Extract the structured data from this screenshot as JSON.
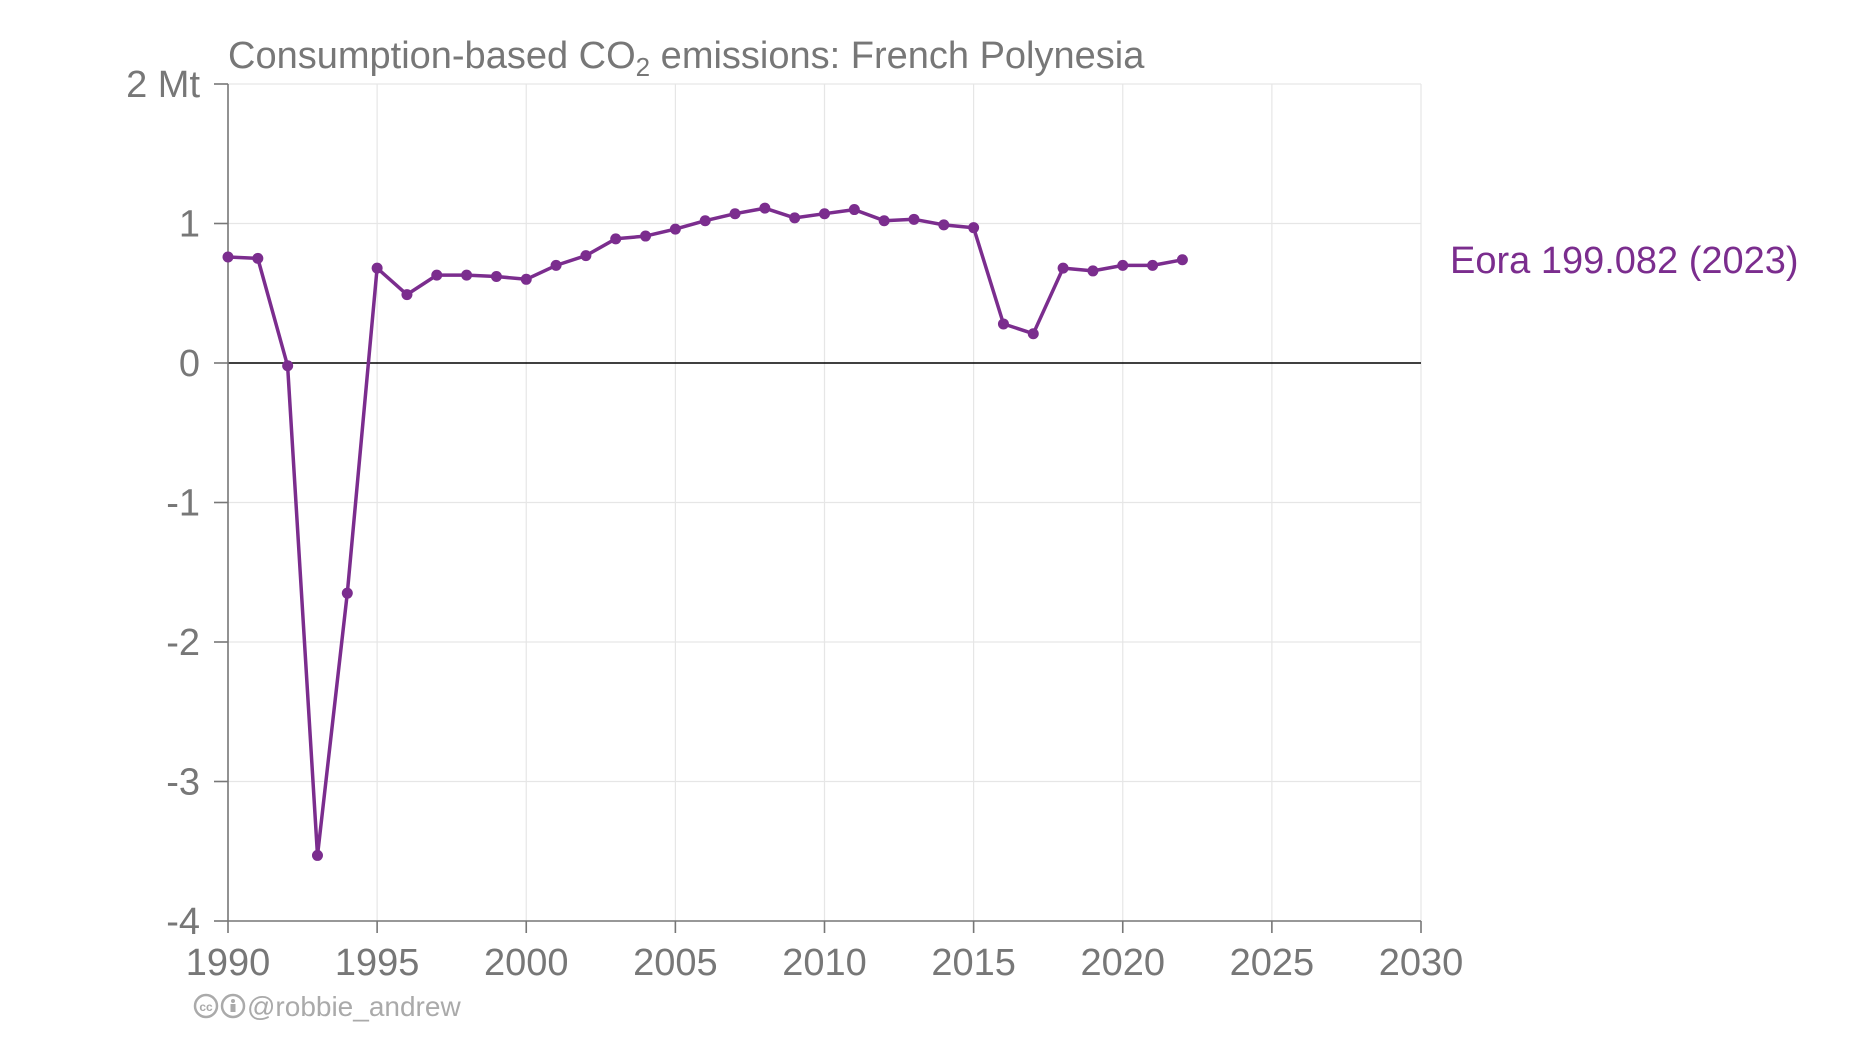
{
  "chart_data": {
    "type": "line",
    "title_prefix": "Consumption-based CO",
    "title_subscript": "2",
    "title_suffix": " emissions: French Polynesia",
    "ylabel": "",
    "xlabel": "",
    "y_unit": "Mt",
    "xlim": [
      1990,
      2030
    ],
    "ylim": [
      -4,
      2
    ],
    "x_ticks": [
      1990,
      1995,
      2000,
      2005,
      2010,
      2015,
      2020,
      2025,
      2030
    ],
    "y_ticks": [
      2,
      1,
      0,
      -1,
      -2,
      -3,
      -4
    ],
    "y_tick_labels": [
      "2 Mt",
      "1",
      "0",
      "-1",
      "-2",
      "-3",
      "-4"
    ],
    "grid": true,
    "series": [
      {
        "name": "Eora 199.082 (2023)",
        "color": "#7b2d8e",
        "x": [
          1990,
          1991,
          1992,
          1993,
          1994,
          1995,
          1996,
          1997,
          1998,
          1999,
          2000,
          2001,
          2002,
          2003,
          2004,
          2005,
          2006,
          2007,
          2008,
          2009,
          2010,
          2011,
          2012,
          2013,
          2014,
          2015,
          2016,
          2017,
          2018,
          2019,
          2020,
          2021,
          2022
        ],
        "y": [
          0.76,
          0.75,
          -0.02,
          -3.53,
          -1.65,
          0.68,
          0.49,
          0.63,
          0.63,
          0.62,
          0.6,
          0.7,
          0.77,
          0.89,
          0.91,
          0.96,
          1.02,
          1.07,
          1.11,
          1.04,
          1.07,
          1.1,
          1.02,
          1.03,
          0.99,
          0.97,
          0.28,
          0.21,
          0.68,
          0.66,
          0.7,
          0.7,
          0.74
        ]
      }
    ]
  },
  "credit": {
    "cc_icon": "cc-icon",
    "by_icon": "by-icon",
    "handle": "@robbie_andrew"
  },
  "colors": {
    "axis": "#777777",
    "grid": "#e6e6e6",
    "zero_line": "#000000"
  }
}
